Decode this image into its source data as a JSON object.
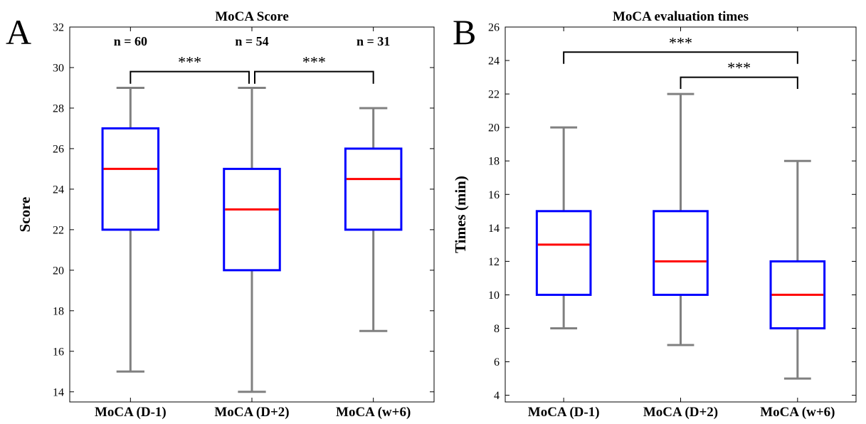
{
  "chart_data": [
    {
      "panel_label": "A",
      "type": "box",
      "title": "MoCA Score",
      "xlabel": "",
      "ylabel": "Score",
      "ylim": [
        13.5,
        32
      ],
      "yticks": [
        14,
        16,
        18,
        20,
        22,
        24,
        26,
        28,
        30,
        32
      ],
      "categories": [
        "MoCA (D-1)",
        "MoCA (D+2)",
        "MoCA (w+6)"
      ],
      "boxes": [
        {
          "min": 15,
          "q1": 22,
          "median": 25,
          "q3": 27,
          "max": 29
        },
        {
          "min": 14,
          "q1": 20,
          "median": 23,
          "q3": 25,
          "max": 29
        },
        {
          "min": 17,
          "q1": 22,
          "median": 24.5,
          "q3": 26,
          "max": 28
        }
      ],
      "n_labels": [
        "n = 60",
        "n = 54",
        "n = 31"
      ],
      "n_label_y": 31.3,
      "significance": [
        {
          "from": 0,
          "to": 1,
          "y": 29.8,
          "drop": 0.6,
          "text": "***"
        },
        {
          "from": 1,
          "to": 2,
          "y": 29.8,
          "drop": 0.6,
          "text": "***"
        }
      ],
      "grid": false,
      "colors": {
        "box": "#0000ff",
        "median": "#ff0000",
        "whisker": "#808080",
        "axes": "#000000"
      }
    },
    {
      "panel_label": "B",
      "type": "box",
      "title": "MoCA evaluation times",
      "xlabel": "",
      "ylabel": "Times (min)",
      "ylim": [
        3.6,
        26
      ],
      "yticks": [
        4,
        6,
        8,
        10,
        12,
        14,
        16,
        18,
        20,
        22,
        24,
        26
      ],
      "categories": [
        "MoCA (D-1)",
        "MoCA (D+2)",
        "MoCA (w+6)"
      ],
      "boxes": [
        {
          "min": 8,
          "q1": 10,
          "median": 13,
          "q3": 15,
          "max": 20
        },
        {
          "min": 7,
          "q1": 10,
          "median": 12,
          "q3": 15,
          "max": 22
        },
        {
          "min": 5,
          "q1": 8,
          "median": 10,
          "q3": 12,
          "max": 18
        }
      ],
      "n_labels": [],
      "significance": [
        {
          "from": 0,
          "to": 2,
          "y": 24.5,
          "drop": 0.7,
          "text": "***"
        },
        {
          "from": 1,
          "to": 2,
          "y": 23.0,
          "drop": 0.7,
          "text": "***"
        }
      ],
      "grid": false,
      "colors": {
        "box": "#0000ff",
        "median": "#ff0000",
        "whisker": "#808080",
        "axes": "#000000"
      }
    }
  ]
}
